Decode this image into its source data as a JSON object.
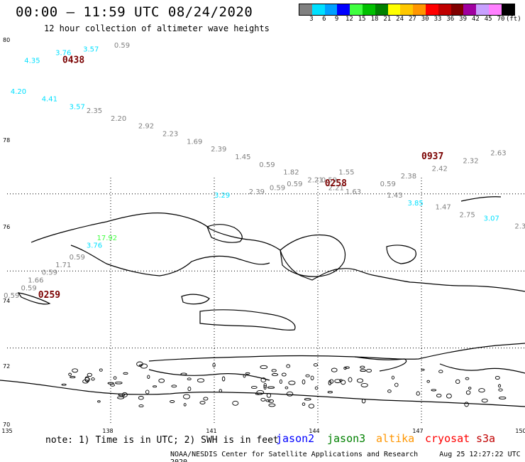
{
  "header": {
    "title": "00:00 – 11:59 UTC 08/24/2020",
    "subtitle": "12 hour collection of altimeter wave heights"
  },
  "legend": {
    "colors": [
      "#808080",
      "#00e0ff",
      "#00a0ff",
      "#0000ff",
      "#40ff40",
      "#00c000",
      "#008000",
      "#ffff00",
      "#ffc800",
      "#ff9600",
      "#ff0000",
      "#c00000",
      "#800000",
      "#a000a0",
      "#c8a0ff",
      "#ff80ff",
      "#000000"
    ],
    "labels": [
      "3",
      "6",
      "9",
      "12",
      "15",
      "18",
      "21",
      "24",
      "27",
      "30",
      "33",
      "36",
      "39",
      "42",
      "45",
      "70",
      "(ft)"
    ]
  },
  "axes": {
    "lon_labels": [
      "135",
      "138",
      "141",
      "144",
      "147",
      "150"
    ],
    "lat_labels": [
      "80",
      "78",
      "76",
      "74",
      "72",
      "70"
    ]
  },
  "passes": [
    {
      "time": "0438",
      "lon": 136.6,
      "lat": 79.4
    },
    {
      "time": "0937",
      "lon": 147.0,
      "lat": 76.9
    },
    {
      "time": "0258",
      "lon": 144.2,
      "lat": 76.2
    },
    {
      "time": "0259",
      "lon": 135.9,
      "lat": 73.3
    }
  ],
  "measurements": [
    {
      "v": "3.76",
      "lon": 136.4,
      "lat": 79.6,
      "c": "#00e0ff"
    },
    {
      "v": "3.57",
      "lon": 137.2,
      "lat": 79.7,
      "c": "#00e0ff"
    },
    {
      "v": "0.59",
      "lon": 138.1,
      "lat": 79.8,
      "c": "#808080"
    },
    {
      "v": "4.35",
      "lon": 135.5,
      "lat": 79.4,
      "c": "#00e0ff"
    },
    {
      "v": "4.20",
      "lon": 135.1,
      "lat": 78.6,
      "c": "#00e0ff"
    },
    {
      "v": "4.41",
      "lon": 136.0,
      "lat": 78.4,
      "c": "#00e0ff"
    },
    {
      "v": "3.57",
      "lon": 136.8,
      "lat": 78.2,
      "c": "#00e0ff"
    },
    {
      "v": "2.35",
      "lon": 137.3,
      "lat": 78.1,
      "c": "#808080"
    },
    {
      "v": "2.20",
      "lon": 138.0,
      "lat": 77.9,
      "c": "#808080"
    },
    {
      "v": "2.92",
      "lon": 138.8,
      "lat": 77.7,
      "c": "#808080"
    },
    {
      "v": "2.23",
      "lon": 139.5,
      "lat": 77.5,
      "c": "#808080"
    },
    {
      "v": "1.69",
      "lon": 140.2,
      "lat": 77.3,
      "c": "#808080"
    },
    {
      "v": "2.39",
      "lon": 140.9,
      "lat": 77.1,
      "c": "#808080"
    },
    {
      "v": "1.45",
      "lon": 141.6,
      "lat": 76.9,
      "c": "#808080"
    },
    {
      "v": "0.59",
      "lon": 142.3,
      "lat": 76.7,
      "c": "#808080"
    },
    {
      "v": "1.82",
      "lon": 143.0,
      "lat": 76.5,
      "c": "#808080"
    },
    {
      "v": "2.21",
      "lon": 143.7,
      "lat": 76.3,
      "c": "#808080"
    },
    {
      "v": "2.21",
      "lon": 144.3,
      "lat": 76.1,
      "c": "#808080"
    },
    {
      "v": "1.63",
      "lon": 144.8,
      "lat": 76.0,
      "c": "#808080"
    },
    {
      "v": "0.59",
      "lon": 145.8,
      "lat": 76.2,
      "c": "#808080"
    },
    {
      "v": "2.38",
      "lon": 146.4,
      "lat": 76.4,
      "c": "#808080"
    },
    {
      "v": "2.42",
      "lon": 147.3,
      "lat": 76.6,
      "c": "#808080"
    },
    {
      "v": "2.32",
      "lon": 148.2,
      "lat": 76.8,
      "c": "#808080"
    },
    {
      "v": "2.63",
      "lon": 149.0,
      "lat": 77.0,
      "c": "#808080"
    },
    {
      "v": "1.55",
      "lon": 144.6,
      "lat": 76.5,
      "c": "#808080"
    },
    {
      "v": "0.59",
      "lon": 144.1,
      "lat": 76.3,
      "c": "#808080"
    },
    {
      "v": "1.43",
      "lon": 146.0,
      "lat": 75.9,
      "c": "#808080"
    },
    {
      "v": "3.85",
      "lon": 146.6,
      "lat": 75.7,
      "c": "#00e0ff"
    },
    {
      "v": "1.47",
      "lon": 147.4,
      "lat": 75.6,
      "c": "#808080"
    },
    {
      "v": "2.75",
      "lon": 148.1,
      "lat": 75.4,
      "c": "#808080"
    },
    {
      "v": "3.07",
      "lon": 148.8,
      "lat": 75.3,
      "c": "#00e0ff"
    },
    {
      "v": "2.3",
      "lon": 149.7,
      "lat": 75.1,
      "c": "#808080"
    },
    {
      "v": "0.59",
      "lon": 143.1,
      "lat": 76.2,
      "c": "#808080"
    },
    {
      "v": "0.59",
      "lon": 142.6,
      "lat": 76.1,
      "c": "#808080"
    },
    {
      "v": "2.39",
      "lon": 142.0,
      "lat": 76.0,
      "c": "#808080"
    },
    {
      "v": "3.29",
      "lon": 141.0,
      "lat": 75.9,
      "c": "#00e0ff"
    },
    {
      "v": "17.92",
      "lon": 137.6,
      "lat": 74.8,
      "c": "#40ff40"
    },
    {
      "v": "3.76",
      "lon": 137.3,
      "lat": 74.6,
      "c": "#00e0ff"
    },
    {
      "v": "0.59",
      "lon": 136.8,
      "lat": 74.3,
      "c": "#808080"
    },
    {
      "v": "1.71",
      "lon": 136.4,
      "lat": 74.1,
      "c": "#808080"
    },
    {
      "v": "0.59",
      "lon": 136.0,
      "lat": 73.9,
      "c": "#808080"
    },
    {
      "v": "1.66",
      "lon": 135.6,
      "lat": 73.7,
      "c": "#808080"
    },
    {
      "v": "0.59",
      "lon": 135.4,
      "lat": 73.5,
      "c": "#808080"
    },
    {
      "v": "0.59",
      "lon": 134.9,
      "lat": 73.3,
      "c": "#808080"
    }
  ],
  "footer": {
    "note": "note: 1) Time is in UTC; 2) SWH is in feet",
    "satellites": [
      {
        "name": "jason2",
        "color": "#0000ff"
      },
      {
        "name": "jason3",
        "color": "#008000"
      },
      {
        "name": "altika",
        "color": "#ff9600"
      },
      {
        "name": "cryosat",
        "color": "#ff0000"
      },
      {
        "name": "s3a",
        "color": "#c00000"
      }
    ],
    "credit": "NOAA/NESDIS Center for Satellite Applications and Research",
    "timestamp": "Aug 25 12:27:22 UTC 2020"
  }
}
